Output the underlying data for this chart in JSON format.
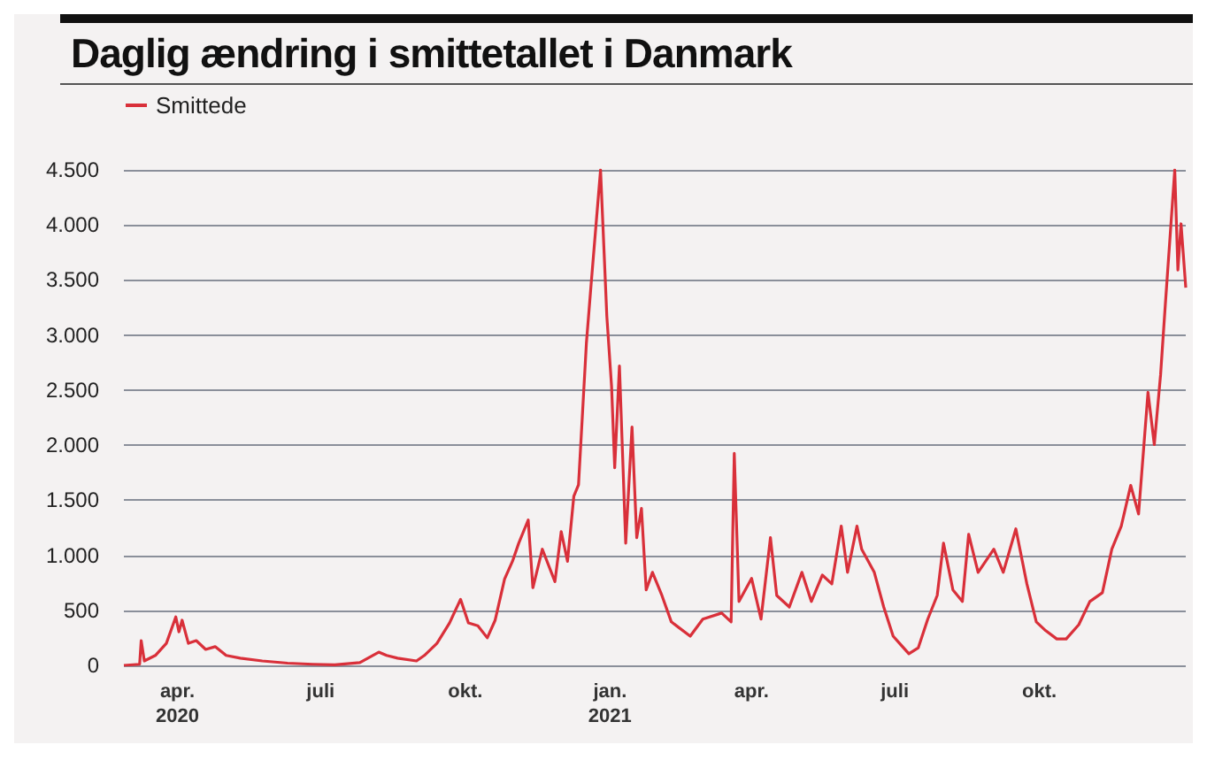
{
  "chart_data": {
    "type": "line",
    "title": "Daglig ændring i smittetallet i Danmark",
    "x": [
      "2020-02-27",
      "2020-03-08",
      "2020-03-09",
      "2020-03-11",
      "2020-03-18",
      "2020-03-25",
      "2020-03-31",
      "2020-04-02",
      "2020-04-04",
      "2020-04-08",
      "2020-04-13",
      "2020-04-19",
      "2020-04-25",
      "2020-05-02",
      "2020-05-11",
      "2020-05-25",
      "2020-06-10",
      "2020-06-26",
      "2020-07-10",
      "2020-07-26",
      "2020-08-07",
      "2020-08-12",
      "2020-08-19",
      "2020-08-31",
      "2020-09-05",
      "2020-09-13",
      "2020-09-21",
      "2020-09-28",
      "2020-10-03",
      "2020-10-09",
      "2020-10-15",
      "2020-10-20",
      "2020-10-26",
      "2020-10-31",
      "2020-11-04",
      "2020-11-10",
      "2020-11-13",
      "2020-11-19",
      "2020-11-27",
      "2020-12-01",
      "2020-12-05",
      "2020-12-09",
      "2020-12-12",
      "2020-12-17",
      "2020-12-20",
      "2020-12-26",
      "2020-12-30",
      "2021-01-02",
      "2021-01-04",
      "2021-01-07",
      "2021-01-11",
      "2021-01-15",
      "2021-01-18",
      "2021-01-21",
      "2021-01-24",
      "2021-01-28",
      "2021-02-03",
      "2021-02-09",
      "2021-02-21",
      "2021-03-01",
      "2021-03-13",
      "2021-03-19",
      "2021-03-21",
      "2021-03-24",
      "2021-04-01",
      "2021-04-07",
      "2021-04-13",
      "2021-04-17",
      "2021-04-25",
      "2021-05-03",
      "2021-05-09",
      "2021-05-16",
      "2021-05-22",
      "2021-05-28",
      "2021-06-01",
      "2021-06-07",
      "2021-06-10",
      "2021-06-18",
      "2021-06-24",
      "2021-06-30",
      "2021-07-10",
      "2021-07-16",
      "2021-07-22",
      "2021-07-28",
      "2021-08-01",
      "2021-08-07",
      "2021-08-13",
      "2021-08-17",
      "2021-08-23",
      "2021-09-02",
      "2021-09-08",
      "2021-09-16",
      "2021-09-23",
      "2021-09-29",
      "2021-10-05",
      "2021-10-12",
      "2021-10-18",
      "2021-10-26",
      "2021-11-02",
      "2021-11-10",
      "2021-11-16",
      "2021-11-22",
      "2021-11-28",
      "2021-12-03",
      "2021-12-09",
      "2021-12-13",
      "2021-12-17",
      "2021-12-20",
      "2021-12-26",
      "2021-12-28",
      "2021-12-30",
      "2022-01-02"
    ],
    "series": [
      {
        "name": "Smittede",
        "color": "#d9303a",
        "values": [
          0,
          10,
          225,
          40,
          90,
          200,
          440,
          305,
          410,
          200,
          225,
          145,
          170,
          90,
          65,
          40,
          20,
          10,
          5,
          25,
          120,
          90,
          65,
          40,
          90,
          200,
          385,
          600,
          385,
          360,
          250,
          410,
          785,
          945,
          1110,
          1320,
          705,
          1055,
          760,
          1215,
          945,
          1535,
          1640,
          2925,
          3460,
          4500,
          3170,
          2535,
          1795,
          2720,
          1110,
          2165,
          1160,
          1425,
          685,
          845,
          635,
          395,
          265,
          420,
          475,
          395,
          1925,
          580,
          790,
          420,
          1160,
          635,
          530,
          845,
          580,
          820,
          740,
          1265,
          845,
          1265,
          1055,
          845,
          530,
          265,
          105,
          160,
          420,
          635,
          1110,
          685,
          580,
          1190,
          845,
          1055,
          845,
          1240,
          740,
          395,
          315,
          240,
          240,
          370,
          580,
          660,
          1055,
          1265,
          1635,
          1375,
          2480,
          2005,
          2640,
          3275,
          4500,
          3590,
          4010,
          3430
        ]
      }
    ],
    "xlim": [
      "2020-02-27",
      "2022-01-02"
    ],
    "xticks": [
      {
        "value": "2020-04-01",
        "label": "apr.\n2020"
      },
      {
        "value": "2020-07-01",
        "label": "juli"
      },
      {
        "value": "2020-10-01",
        "label": "okt."
      },
      {
        "value": "2021-01-01",
        "label": "jan.\n2021"
      },
      {
        "value": "2021-04-01",
        "label": "apr."
      },
      {
        "value": "2021-07-01",
        "label": "juli"
      },
      {
        "value": "2021-10-01",
        "label": "okt."
      }
    ],
    "ylim": [
      0,
      4500
    ],
    "yticks": [
      0,
      500,
      {
        "value": 1000,
        "label": "1.000"
      },
      {
        "value": 1500,
        "label": "1.500"
      },
      {
        "value": 2000,
        "label": "2.000"
      },
      {
        "value": 2500,
        "label": "2.500"
      },
      {
        "value": 3000,
        "label": "3.000"
      },
      {
        "value": 3500,
        "label": "3.500"
      },
      {
        "value": 4000,
        "label": "4.000"
      },
      {
        "value": 4500,
        "label": "4.500"
      }
    ],
    "grid": "y",
    "legend": "top left",
    "marker": "none",
    "line_style": "solid"
  }
}
